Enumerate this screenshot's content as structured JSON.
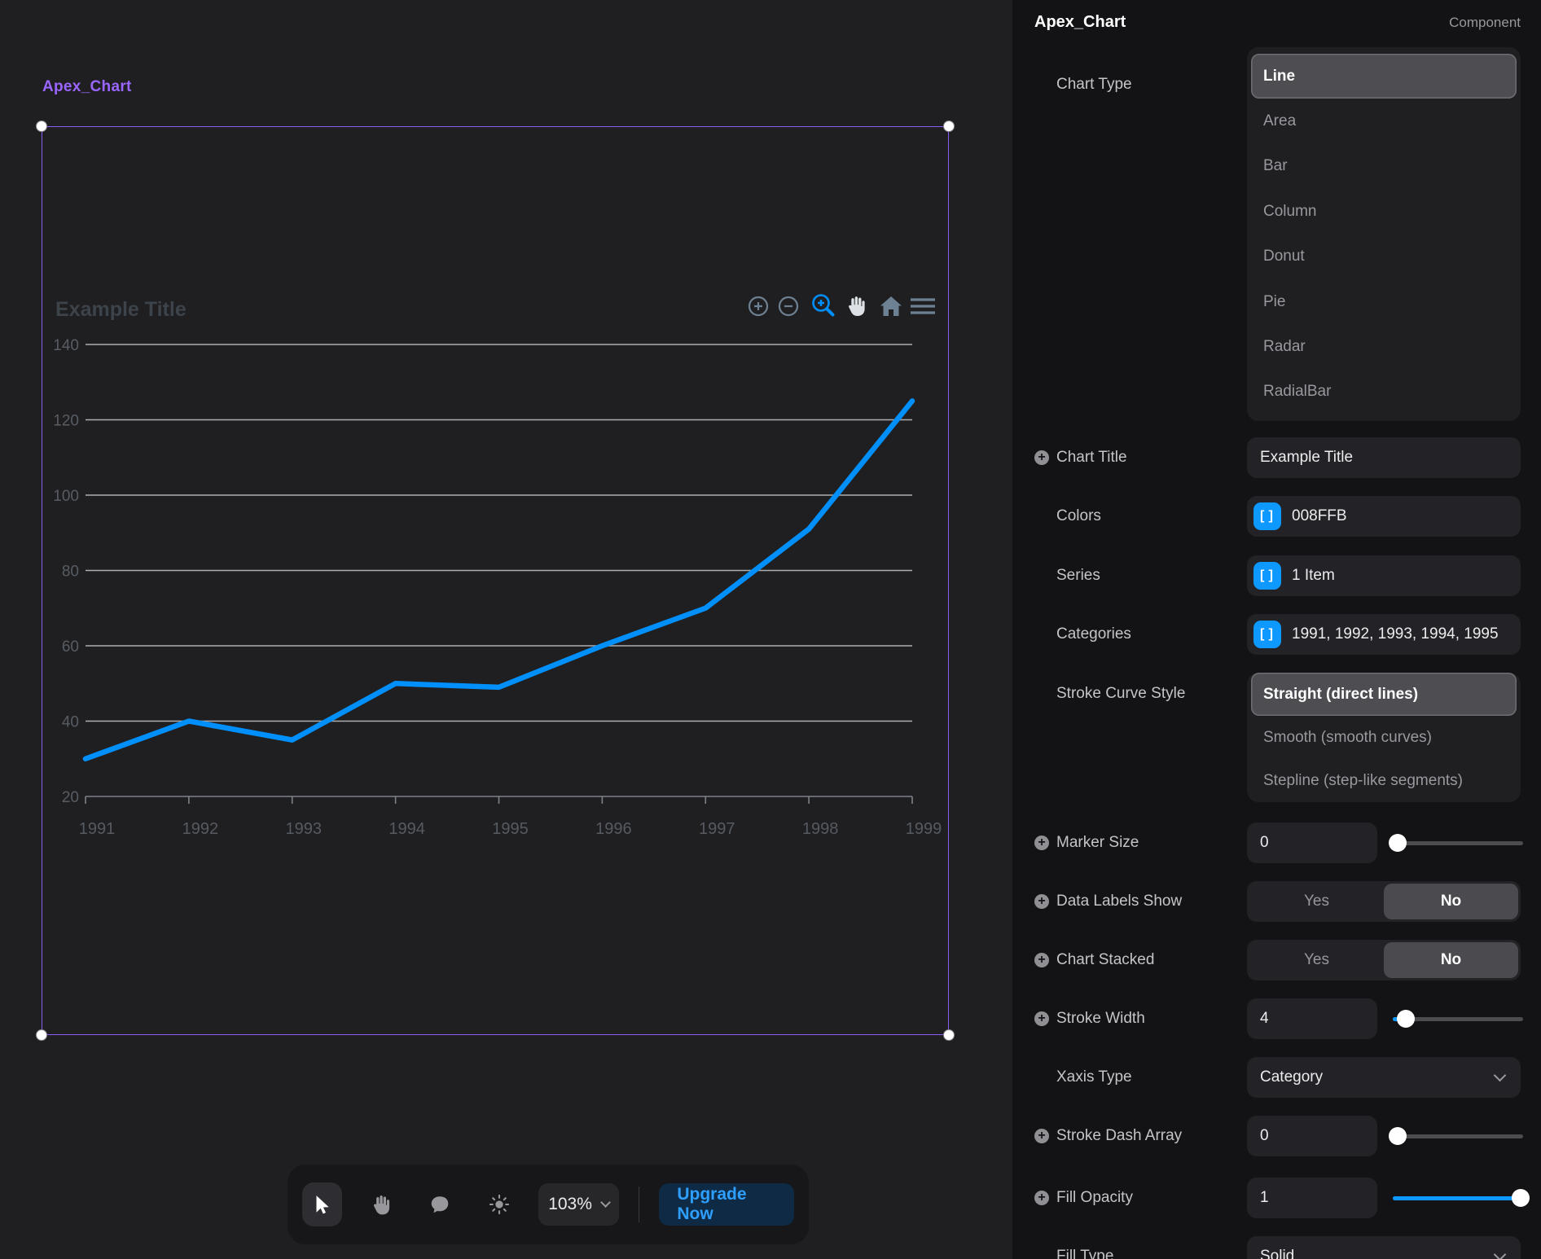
{
  "colors": {
    "chart_line": "#008FFB",
    "accent_blue": "#0D99FF",
    "selection_purple": "#8D5CF6",
    "upgrade_blue": "#2E9FFF"
  },
  "canvas": {
    "frame_label": "Apex_Chart",
    "chart_toolbar_icons": [
      "zoom-in",
      "zoom-out",
      "selection-zoom",
      "pan",
      "home",
      "menu"
    ]
  },
  "chart_data": {
    "type": "line",
    "title": "Example Title",
    "categories": [
      "1991",
      "1992",
      "1993",
      "1994",
      "1995",
      "1996",
      "1997",
      "1998",
      "1999"
    ],
    "series": [
      {
        "values": [
          30,
          40,
          35,
          50,
          49,
          60,
          70,
          91,
          125
        ]
      }
    ],
    "ylim": [
      20,
      140
    ],
    "yticks": [
      20,
      40,
      60,
      80,
      100,
      120,
      140
    ],
    "grid": true,
    "legend": "none",
    "line_color": "#008FFB"
  },
  "bottom_toolbar": {
    "icons": [
      "cursor",
      "hand",
      "comment",
      "theme"
    ],
    "zoom_level": "103%",
    "upgrade_label": "Upgrade Now"
  },
  "panel": {
    "header": {
      "title": "Apex_Chart",
      "badge": "Component"
    },
    "chart_type": {
      "label": "Chart Type",
      "selected": "Line",
      "options": [
        "Line",
        "Area",
        "Bar",
        "Column",
        "Donut",
        "Pie",
        "Radar",
        "RadialBar"
      ]
    },
    "chart_title": {
      "label": "Chart Title",
      "value": "Example Title"
    },
    "colors_field": {
      "label": "Colors",
      "value": "008FFB"
    },
    "series_field": {
      "label": "Series",
      "value": "1 Item"
    },
    "categories_field": {
      "label": "Categories",
      "value": "1991, 1992, 1993, 1994, 1995"
    },
    "stroke_curve": {
      "label": "Stroke Curve Style",
      "selected": "Straight (direct lines)",
      "options": [
        "Straight (direct lines)",
        "Smooth (smooth curves)",
        "Stepline (step-like segments)"
      ]
    },
    "marker_size": {
      "label": "Marker Size",
      "value": "0",
      "slider_pct": 4,
      "slider_filled": false
    },
    "data_labels_show": {
      "label": "Data Labels Show",
      "options": [
        "Yes",
        "No"
      ],
      "selected": "No"
    },
    "chart_stacked": {
      "label": "Chart Stacked",
      "options": [
        "Yes",
        "No"
      ],
      "selected": "No"
    },
    "stroke_width": {
      "label": "Stroke Width",
      "value": "4",
      "slider_pct": 10,
      "slider_filled": true
    },
    "xaxis_type": {
      "label": "Xaxis Type",
      "value": "Category"
    },
    "stroke_dash_array": {
      "label": "Stroke Dash Array",
      "value": "0",
      "slider_pct": 4,
      "slider_filled": false
    },
    "fill_opacity": {
      "label": "Fill Opacity",
      "value": "1",
      "slider_pct": 98,
      "slider_filled": true
    },
    "fill_type": {
      "label": "Fill Type",
      "value": "Solid"
    }
  }
}
